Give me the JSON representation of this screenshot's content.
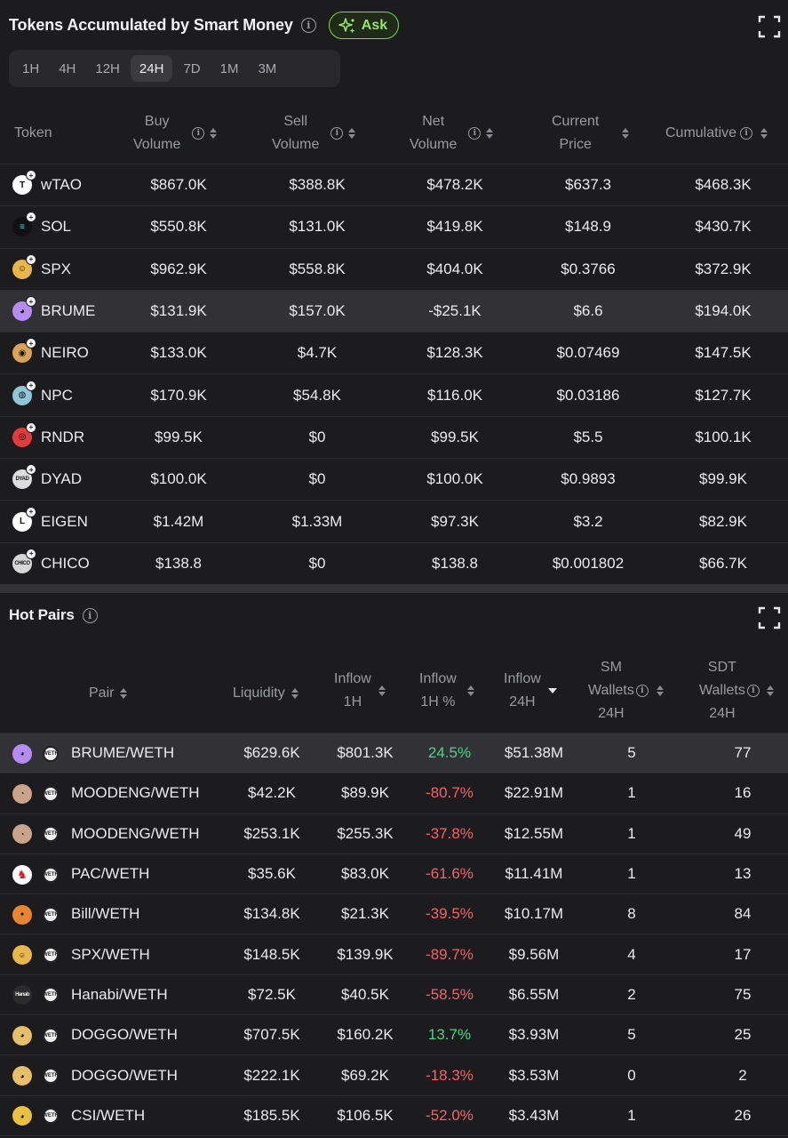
{
  "panel1": {
    "title": "Tokens Accumulated by Smart Money",
    "ask_label": "Ask",
    "timeframes": [
      "1H",
      "4H",
      "12H",
      "24H",
      "7D",
      "1M",
      "3M"
    ],
    "active_timeframe": "24H",
    "columns": {
      "token": "Token",
      "buy_volume": [
        "Buy",
        "Volume"
      ],
      "sell_volume": [
        "Sell",
        "Volume"
      ],
      "net_volume": [
        "Net",
        "Volume"
      ],
      "current_price": [
        "Current",
        "Price"
      ],
      "cumulative": "Cumulative"
    },
    "rows": [
      {
        "token": "wTAO",
        "icon": "wtao-icon",
        "icon_color": "#ffffff",
        "icon_glyph": "T",
        "buy": "$867.0K",
        "sell": "$388.8K",
        "net": "$478.2K",
        "price": "$637.3",
        "cumulative": "$468.3K"
      },
      {
        "token": "SOL",
        "icon": "sol-icon",
        "icon_color": "#111111",
        "icon_glyph": "≡",
        "buy": "$550.8K",
        "sell": "$131.0K",
        "net": "$419.8K",
        "price": "$148.9",
        "cumulative": "$430.7K"
      },
      {
        "token": "SPX",
        "icon": "spx-icon",
        "icon_color": "#e9b64a",
        "icon_glyph": "☺",
        "buy": "$962.9K",
        "sell": "$558.8K",
        "net": "$404.0K",
        "price": "$0.3766",
        "cumulative": "$372.9K"
      },
      {
        "token": "BRUME",
        "icon": "brume-icon",
        "icon_color": "#b58cf2",
        "icon_glyph": "◕",
        "buy": "$131.9K",
        "sell": "$157.0K",
        "net": "-$25.1K",
        "price": "$6.6",
        "cumulative": "$194.0K",
        "highlight": true
      },
      {
        "token": "NEIRO",
        "icon": "neiro-icon",
        "icon_color": "#d9a35a",
        "icon_glyph": "◉",
        "buy": "$133.0K",
        "sell": "$4.7K",
        "net": "$128.3K",
        "price": "$0.07469",
        "cumulative": "$147.5K"
      },
      {
        "token": "NPC",
        "icon": "npc-icon",
        "icon_color": "#8fc6d9",
        "icon_glyph": "◍",
        "buy": "$170.9K",
        "sell": "$54.8K",
        "net": "$116.0K",
        "price": "$0.03186",
        "cumulative": "$127.7K"
      },
      {
        "token": "RNDR",
        "icon": "rndr-icon",
        "icon_color": "#e23b3b",
        "icon_glyph": "◎",
        "buy": "$99.5K",
        "sell": "$0",
        "net": "$99.5K",
        "price": "$5.5",
        "cumulative": "$100.1K"
      },
      {
        "token": "DYAD",
        "icon": "dyad-icon",
        "icon_color": "#dcdcdc",
        "icon_glyph": "DYAD",
        "buy": "$100.0K",
        "sell": "$0",
        "net": "$100.0K",
        "price": "$0.9893",
        "cumulative": "$99.9K"
      },
      {
        "token": "EIGEN",
        "icon": "eigen-icon",
        "icon_color": "#ffffff",
        "icon_glyph": "L",
        "buy": "$1.42M",
        "sell": "$1.33M",
        "net": "$97.3K",
        "price": "$3.2",
        "cumulative": "$82.9K"
      },
      {
        "token": "CHICO",
        "icon": "chico-icon",
        "icon_color": "#d6d6d6",
        "icon_glyph": "CHICO",
        "buy": "$138.8",
        "sell": "$0",
        "net": "$138.8",
        "price": "$0.001802",
        "cumulative": "$66.7K"
      }
    ]
  },
  "panel2": {
    "title": "Hot Pairs",
    "columns": {
      "pair": "Pair",
      "liquidity": "Liquidity",
      "inflow_1h": [
        "Inflow",
        "1H"
      ],
      "inflow_1h_pct": [
        "Inflow",
        "1H %"
      ],
      "inflow_24h": [
        "Inflow",
        "24H"
      ],
      "sm_wallets": [
        "SM",
        "Wallets",
        "24H"
      ],
      "sdt_wallets": [
        "SDT",
        "Wallets",
        "24H"
      ]
    },
    "weth_glyph": "WETH",
    "rows": [
      {
        "pair": "BRUME/WETH",
        "icon": "brume-icon",
        "icon_color": "#b58cf2",
        "icon_glyph": "◕",
        "liquidity": "$629.6K",
        "inflow_1h": "$801.3K",
        "inflow_pct": "24.5%",
        "pct_positive": true,
        "inflow_24h": "$51.38M",
        "sm": "5",
        "sdt": "77",
        "highlight": true
      },
      {
        "pair": "MOODENG/WETH",
        "icon": "moodeng-icon",
        "icon_color": "#c9a48a",
        "icon_glyph": "◔",
        "liquidity": "$42.2K",
        "inflow_1h": "$89.9K",
        "inflow_pct": "-80.7%",
        "pct_positive": false,
        "inflow_24h": "$22.91M",
        "sm": "1",
        "sdt": "16"
      },
      {
        "pair": "MOODENG/WETH",
        "icon": "moodeng-icon",
        "icon_color": "#c9a48a",
        "icon_glyph": "◔",
        "liquidity": "$253.1K",
        "inflow_1h": "$255.3K",
        "inflow_pct": "-37.8%",
        "pct_positive": false,
        "inflow_24h": "$12.55M",
        "sm": "1",
        "sdt": "49"
      },
      {
        "pair": "PAC/WETH",
        "icon": "pac-icon",
        "icon_color": "#ffffff",
        "icon_glyph": "♞",
        "liquidity": "$35.6K",
        "inflow_1h": "$83.0K",
        "inflow_pct": "-61.6%",
        "pct_positive": false,
        "inflow_24h": "$11.41M",
        "sm": "1",
        "sdt": "13"
      },
      {
        "pair": "Bill/WETH",
        "icon": "bill-icon",
        "icon_color": "#e8862f",
        "icon_glyph": "✦",
        "liquidity": "$134.8K",
        "inflow_1h": "$21.3K",
        "inflow_pct": "-39.5%",
        "pct_positive": false,
        "inflow_24h": "$10.17M",
        "sm": "8",
        "sdt": "84"
      },
      {
        "pair": "SPX/WETH",
        "icon": "spx-icon",
        "icon_color": "#e9b64a",
        "icon_glyph": "☺",
        "liquidity": "$148.5K",
        "inflow_1h": "$139.9K",
        "inflow_pct": "-89.7%",
        "pct_positive": false,
        "inflow_24h": "$9.56M",
        "sm": "4",
        "sdt": "17"
      },
      {
        "pair": "Hanabi/WETH",
        "icon": "hanabi-icon",
        "icon_color": "#2b2b2b",
        "icon_glyph": "Hanab",
        "liquidity": "$72.5K",
        "inflow_1h": "$40.5K",
        "inflow_pct": "-58.5%",
        "pct_positive": false,
        "inflow_24h": "$6.55M",
        "sm": "2",
        "sdt": "75"
      },
      {
        "pair": "DOGGO/WETH",
        "icon": "doggo-icon",
        "icon_color": "#e7bf68",
        "icon_glyph": "◕",
        "liquidity": "$707.5K",
        "inflow_1h": "$160.2K",
        "inflow_pct": "13.7%",
        "pct_positive": true,
        "inflow_24h": "$3.93M",
        "sm": "5",
        "sdt": "25"
      },
      {
        "pair": "DOGGO/WETH",
        "icon": "doggo-icon",
        "icon_color": "#e7bf68",
        "icon_glyph": "◕",
        "liquidity": "$222.1K",
        "inflow_1h": "$69.2K",
        "inflow_pct": "-18.3%",
        "pct_positive": false,
        "inflow_24h": "$3.53M",
        "sm": "0",
        "sdt": "2"
      },
      {
        "pair": "CSI/WETH",
        "icon": "csi-icon",
        "icon_color": "#e9c13f",
        "icon_glyph": "◕",
        "liquidity": "$185.5K",
        "inflow_1h": "$106.5K",
        "inflow_pct": "-52.0%",
        "pct_positive": false,
        "inflow_24h": "$3.43M",
        "sm": "1",
        "sdt": "26"
      }
    ]
  }
}
